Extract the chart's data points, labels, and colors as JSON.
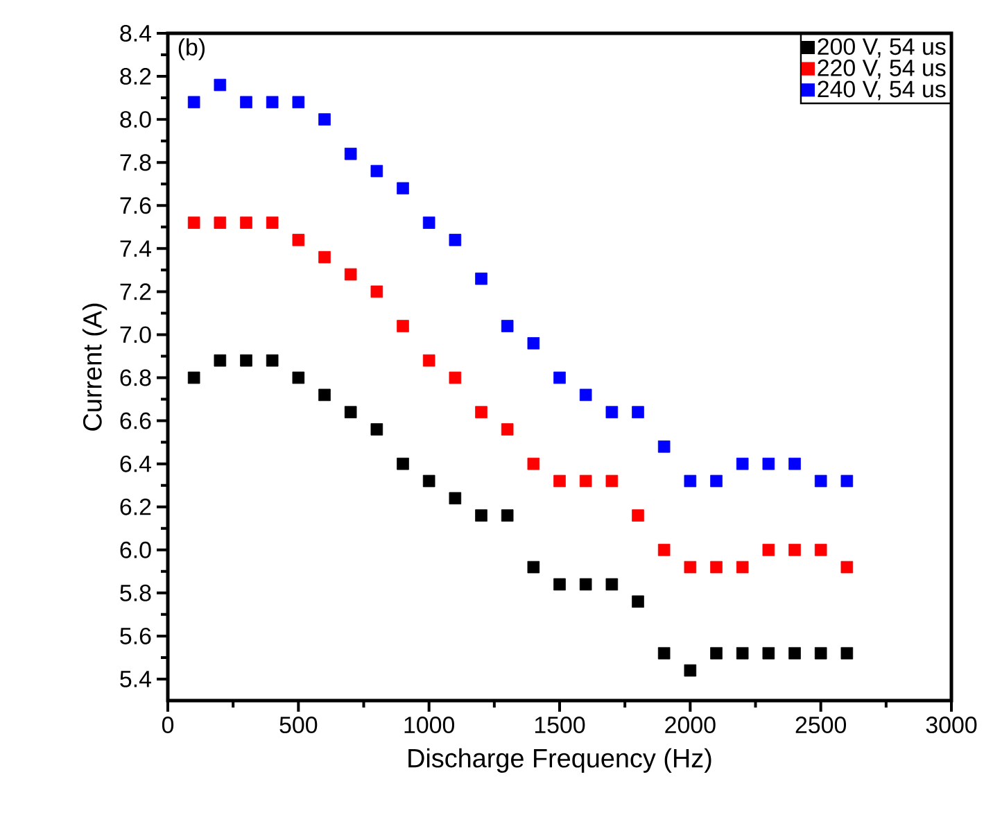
{
  "chart_data": {
    "type": "scatter",
    "xlabel": "Discharge Frequency (Hz)",
    "ylabel": "Current (A)",
    "xlim": [
      0,
      3000
    ],
    "ylim": [
      5.3,
      8.4
    ],
    "xticks": [
      0,
      500,
      1000,
      1500,
      2000,
      2500,
      3000
    ],
    "yticks": [
      {
        "value": 5.4,
        "label": "5.4"
      },
      {
        "value": 5.6,
        "label": "5.6"
      },
      {
        "value": 5.8,
        "label": "5.8"
      },
      {
        "value": 6.0,
        "label": "6.0"
      },
      {
        "value": 6.2,
        "label": "6.2"
      },
      {
        "value": 6.4,
        "label": "6.4"
      },
      {
        "value": 6.6,
        "label": "6.6"
      },
      {
        "value": 6.8,
        "label": "6.8"
      },
      {
        "value": 7.0,
        "label": "7.0"
      },
      {
        "value": 7.2,
        "label": "7.2"
      },
      {
        "value": 7.4,
        "label": "7.4"
      },
      {
        "value": 7.6,
        "label": "7.6"
      },
      {
        "value": 7.8,
        "label": "7.8"
      },
      {
        "value": 8.0,
        "label": "8.0"
      },
      {
        "value": 8.2,
        "label": "8.2"
      },
      {
        "value": 8.4,
        "label": "8.4"
      }
    ],
    "x": [
      100,
      200,
      300,
      400,
      500,
      600,
      700,
      800,
      900,
      1000,
      1100,
      1200,
      1300,
      1400,
      1500,
      1600,
      1700,
      1800,
      1900,
      2000,
      2100,
      2200,
      2300,
      2400,
      2500,
      2600
    ],
    "series": [
      {
        "name": "200 V, 54 us",
        "color": "#000000",
        "values": [
          6.8,
          6.88,
          6.88,
          6.88,
          6.8,
          6.72,
          6.64,
          6.56,
          6.4,
          6.32,
          6.24,
          6.16,
          6.16,
          5.92,
          5.84,
          5.84,
          5.84,
          5.76,
          5.52,
          5.44,
          5.52,
          5.52,
          5.52,
          5.52,
          5.52,
          5.52
        ]
      },
      {
        "name": "220 V, 54 us",
        "color": "#ff0000",
        "values": [
          7.52,
          7.52,
          7.52,
          7.52,
          7.44,
          7.36,
          7.28,
          7.2,
          7.04,
          6.88,
          6.8,
          6.64,
          6.56,
          6.4,
          6.32,
          6.32,
          6.32,
          6.16,
          6.0,
          5.92,
          5.92,
          5.92,
          6.0,
          6.0,
          6.0,
          5.92
        ]
      },
      {
        "name": "240 V, 54 us",
        "color": "#0000ff",
        "values": [
          8.08,
          8.16,
          8.08,
          8.08,
          8.08,
          8.0,
          7.84,
          7.76,
          7.68,
          7.52,
          7.44,
          7.26,
          7.04,
          6.96,
          6.8,
          6.72,
          6.64,
          6.64,
          6.48,
          6.32,
          6.32,
          6.4,
          6.4,
          6.4,
          6.32,
          6.32
        ]
      }
    ],
    "legend": "top right",
    "marker": "square",
    "annotations": [
      "(b)"
    ]
  }
}
